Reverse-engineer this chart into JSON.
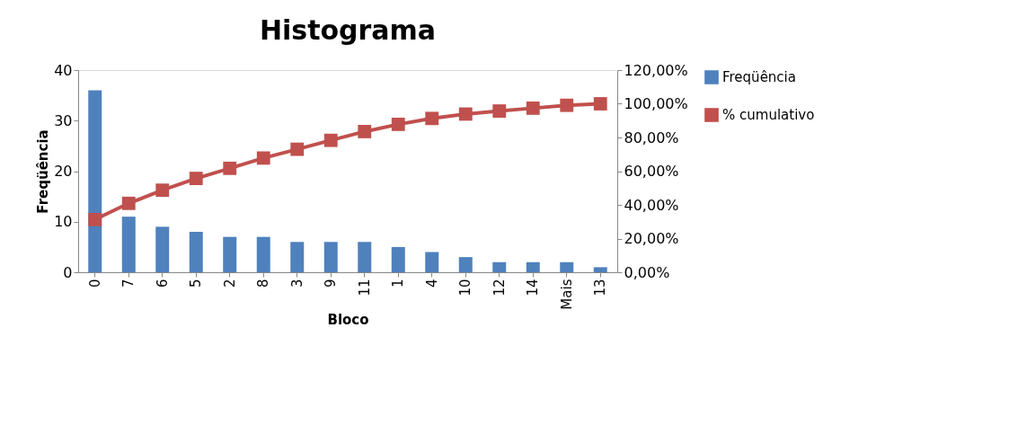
{
  "chart_data": {
    "type": "bar",
    "title": "Histograma",
    "xlabel": "Bloco",
    "ylabel": "Freqüência",
    "categories": [
      "0",
      "7",
      "6",
      "5",
      "2",
      "8",
      "3",
      "9",
      "11",
      "1",
      "4",
      "10",
      "12",
      "14",
      "Mais",
      "13"
    ],
    "series": [
      {
        "name": "Freqüência",
        "color": "#4f81bd",
        "values": [
          36,
          11,
          9,
          8,
          7,
          7,
          6,
          6,
          6,
          5,
          4,
          3,
          2,
          2,
          2,
          1
        ]
      },
      {
        "name": "% cumulativo",
        "color": "#c0504d",
        "type": "line",
        "axis": "y2",
        "marker": "square",
        "line_style": "solid",
        "values": [
          31.3,
          40.9,
          48.7,
          55.7,
          61.7,
          67.8,
          73.0,
          78.3,
          83.5,
          87.8,
          91.3,
          93.9,
          95.7,
          97.4,
          99.1,
          100
        ]
      }
    ],
    "ylim": [
      0,
      40
    ],
    "yticks": [
      0,
      10,
      20,
      30,
      40
    ],
    "y2lim": [
      0,
      120
    ],
    "y2ticks": [
      {
        "value": 0,
        "label": "0,00%"
      },
      {
        "value": 20,
        "label": "20,00%"
      },
      {
        "value": 40,
        "label": "40,00%"
      },
      {
        "value": 60,
        "label": "60,00%"
      },
      {
        "value": 80,
        "label": "80,00%"
      },
      {
        "value": 100,
        "label": "100,00%"
      },
      {
        "value": 120,
        "label": "120,00%"
      }
    ],
    "grid": false,
    "legend": "right"
  }
}
